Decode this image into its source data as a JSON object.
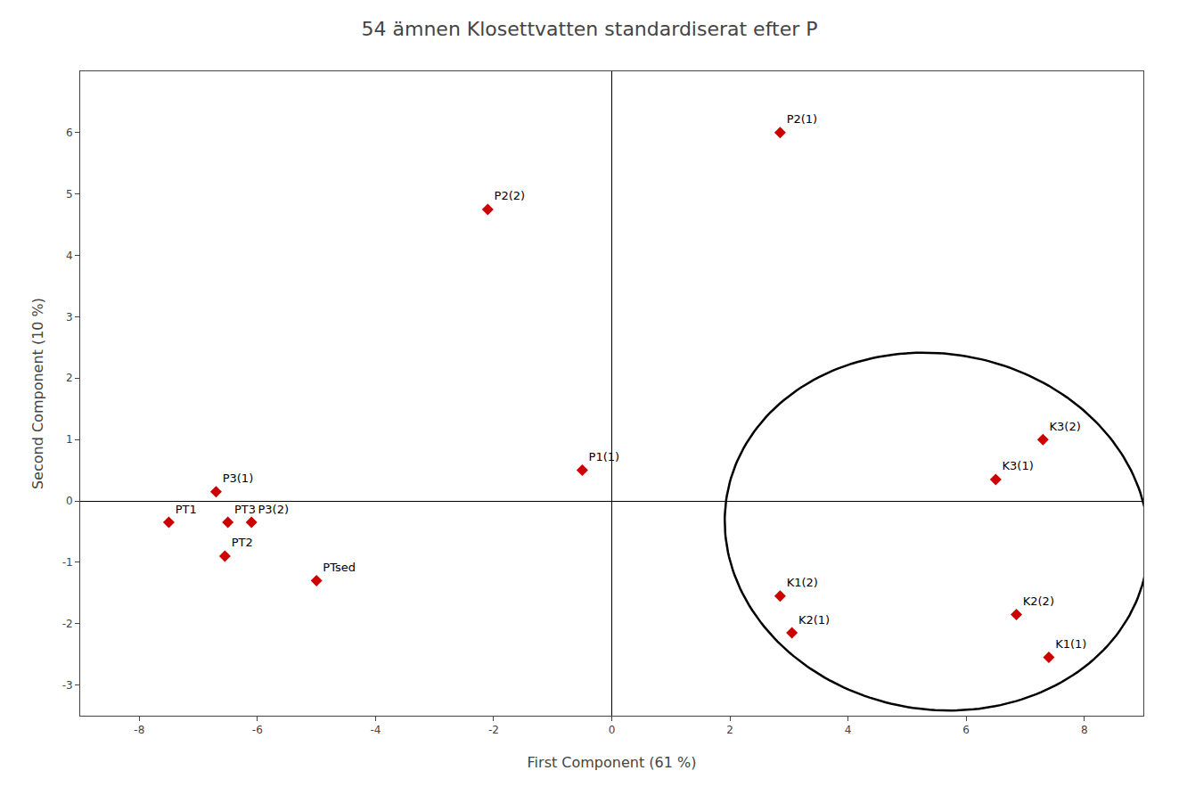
{
  "chart_data": {
    "type": "scatter",
    "title": "54 ämnen Klosettvatten standardiserat efter P",
    "xlabel": "First Component (61 %)",
    "ylabel": "Second Component (10 %)",
    "xlim": [
      -9,
      9
    ],
    "ylim": [
      -3.5,
      7
    ],
    "xticks": [
      -8,
      -6,
      -4,
      -2,
      0,
      2,
      4,
      6,
      8
    ],
    "yticks": [
      -3,
      -2,
      -1,
      0,
      1,
      2,
      3,
      4,
      5,
      6
    ],
    "grid": false,
    "color": "#cc0000",
    "marker": "diamond",
    "points": [
      {
        "label": "P2(1)",
        "x": 2.85,
        "y": 6.0
      },
      {
        "label": "P2(2)",
        "x": -2.1,
        "y": 4.75
      },
      {
        "label": "P1(1)",
        "x": -0.5,
        "y": 0.5
      },
      {
        "label": "P3(1)",
        "x": -6.7,
        "y": 0.15
      },
      {
        "label": "PT1",
        "x": -7.5,
        "y": -0.35
      },
      {
        "label": "PT3",
        "x": -6.5,
        "y": -0.35
      },
      {
        "label": "P3(2)",
        "x": -6.1,
        "y": -0.35
      },
      {
        "label": "PT2",
        "x": -6.55,
        "y": -0.9
      },
      {
        "label": "PTsed",
        "x": -5.0,
        "y": -1.3
      },
      {
        "label": "K3(2)",
        "x": 7.3,
        "y": 1.0
      },
      {
        "label": "K3(1)",
        "x": 6.5,
        "y": 0.35
      },
      {
        "label": "K1(2)",
        "x": 2.85,
        "y": -1.55
      },
      {
        "label": "K2(1)",
        "x": 3.05,
        "y": -2.15
      },
      {
        "label": "K2(2)",
        "x": 6.85,
        "y": -1.85
      },
      {
        "label": "K1(1)",
        "x": 7.4,
        "y": -2.55
      }
    ],
    "ellipse": {
      "center_x": 5.5,
      "center_y": -0.5,
      "width": 7.2,
      "height": 5.8,
      "angle": -8
    }
  }
}
